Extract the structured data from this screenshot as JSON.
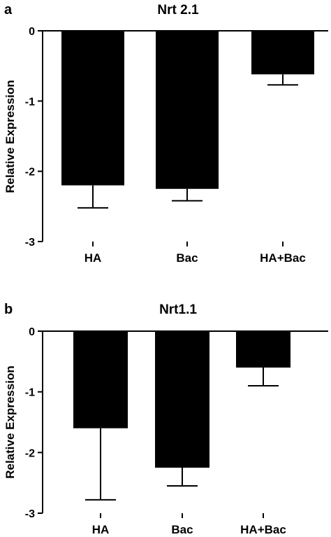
{
  "panels": [
    {
      "letter": "a"
    },
    {
      "letter": "b"
    }
  ],
  "chart_data": [
    {
      "type": "bar",
      "title": "Nrt 2.1",
      "xlabel": "",
      "ylabel": "Relative Expression",
      "categories": [
        "HA",
        "Bac",
        "HA+Bac"
      ],
      "values": [
        -2.2,
        -2.25,
        -0.62
      ],
      "error_bars": [
        -2.52,
        -2.42,
        -0.77
      ],
      "ylim": [
        -3,
        0
      ],
      "yticks": [
        0,
        -1,
        -2,
        -3
      ],
      "ytick_labels": [
        "0",
        "-1",
        "-2",
        "-3"
      ],
      "grid": false,
      "bar_color": "#000000"
    },
    {
      "type": "bar",
      "title": "Nrt1.1",
      "xlabel": "",
      "ylabel": "Relative Expression",
      "categories": [
        "HA",
        "Bac",
        "HA+Bac"
      ],
      "values": [
        -1.6,
        -2.25,
        -0.6
      ],
      "error_bars": [
        -2.78,
        -2.55,
        -0.9
      ],
      "ylim": [
        -3,
        0
      ],
      "yticks": [
        0,
        -1,
        -2,
        -3
      ],
      "ytick_labels": [
        "0",
        "-1",
        "-2",
        "-3"
      ],
      "grid": false,
      "bar_color": "#000000"
    }
  ]
}
